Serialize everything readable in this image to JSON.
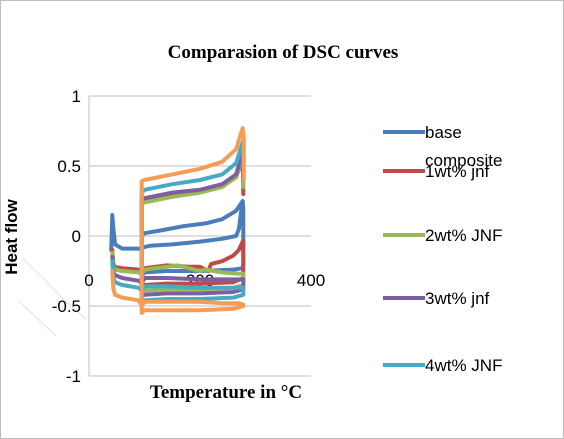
{
  "chart_data": {
    "type": "line",
    "title": "Comparasion of DSC curves",
    "xlabel": "Temperature in °C",
    "ylabel": "Heat flow",
    "xlim": [
      0,
      400
    ],
    "ylim": [
      -1,
      1
    ],
    "x_ticks": [
      "0",
      "200",
      "400"
    ],
    "y_ticks": [
      "1",
      "0.5",
      "0",
      "-0.5",
      "-1"
    ],
    "grid": "horizontal",
    "legend_position": "right",
    "series": [
      {
        "name": "base composite",
        "color": "#4a7ebb",
        "points": [
          [
            40,
            -0.1
          ],
          [
            42,
            0.15
          ],
          [
            44,
            0.05
          ],
          [
            47,
            -0.06
          ],
          [
            60,
            -0.09
          ],
          [
            75,
            -0.09
          ],
          [
            90,
            -0.09
          ],
          [
            95,
            -0.1
          ],
          [
            98,
            -0.08
          ],
          [
            110,
            -0.07
          ],
          [
            150,
            -0.06
          ],
          [
            200,
            -0.04
          ],
          [
            240,
            -0.02
          ],
          [
            265,
            0.0
          ],
          [
            270,
            0.05
          ],
          [
            275,
            0.2
          ],
          [
            277,
            0.25
          ],
          [
            278,
            0.2
          ],
          [
            278,
            0.0
          ],
          [
            278,
            -0.2
          ],
          [
            277,
            -0.23
          ],
          [
            260,
            -0.24
          ],
          [
            200,
            -0.25
          ],
          [
            140,
            -0.25
          ],
          [
            100,
            -0.26
          ],
          [
            98,
            -0.27
          ],
          [
            95,
            -0.26
          ],
          [
            95,
            0.0
          ],
          [
            100,
            0.02
          ],
          [
            130,
            0.04
          ],
          [
            170,
            0.07
          ],
          [
            210,
            0.09
          ],
          [
            240,
            0.12
          ],
          [
            265,
            0.18
          ],
          [
            277,
            0.25
          ]
        ]
      },
      {
        "name": "1wt% jnf",
        "color": "#be4b48",
        "points": [
          [
            42,
            -0.1
          ],
          [
            44,
            -0.2
          ],
          [
            47,
            -0.22
          ],
          [
            60,
            -0.23
          ],
          [
            90,
            -0.24
          ],
          [
            95,
            -0.26
          ],
          [
            100,
            -0.23
          ],
          [
            140,
            -0.21
          ],
          [
            180,
            -0.22
          ],
          [
            200,
            -0.22
          ],
          [
            215,
            -0.25
          ],
          [
            220,
            -0.2
          ],
          [
            240,
            -0.18
          ],
          [
            260,
            -0.14
          ],
          [
            270,
            -0.1
          ],
          [
            278,
            -0.03
          ],
          [
            278,
            -0.3
          ],
          [
            260,
            -0.33
          ],
          [
            200,
            -0.34
          ],
          [
            140,
            -0.34
          ],
          [
            100,
            -0.35
          ],
          [
            95,
            -0.36
          ],
          [
            95,
            0.25
          ],
          [
            100,
            0.26
          ],
          [
            150,
            0.3
          ],
          [
            200,
            0.32
          ],
          [
            240,
            0.36
          ],
          [
            265,
            0.42
          ],
          [
            277,
            0.55
          ],
          [
            278,
            0.3
          ]
        ]
      },
      {
        "name": "2wt% JNF",
        "color": "#98b954",
        "points": [
          [
            42,
            -0.12
          ],
          [
            44,
            -0.22
          ],
          [
            47,
            -0.24
          ],
          [
            60,
            -0.25
          ],
          [
            90,
            -0.26
          ],
          [
            95,
            -0.27
          ],
          [
            100,
            -0.24
          ],
          [
            140,
            -0.22
          ],
          [
            160,
            -0.21
          ],
          [
            180,
            -0.23
          ],
          [
            200,
            -0.25
          ],
          [
            210,
            -0.24
          ],
          [
            240,
            -0.26
          ],
          [
            270,
            -0.27
          ],
          [
            278,
            -0.27
          ],
          [
            278,
            -0.35
          ],
          [
            260,
            -0.37
          ],
          [
            200,
            -0.38
          ],
          [
            140,
            -0.38
          ],
          [
            100,
            -0.39
          ],
          [
            95,
            -0.4
          ],
          [
            95,
            0.23
          ],
          [
            100,
            0.24
          ],
          [
            150,
            0.28
          ],
          [
            200,
            0.31
          ],
          [
            240,
            0.35
          ],
          [
            265,
            0.42
          ],
          [
            277,
            0.58
          ],
          [
            278,
            0.35
          ]
        ]
      },
      {
        "name": "3wt% jnf",
        "color": "#7d5fa0",
        "points": [
          [
            42,
            -0.15
          ],
          [
            44,
            -0.26
          ],
          [
            47,
            -0.28
          ],
          [
            60,
            -0.3
          ],
          [
            90,
            -0.32
          ],
          [
            95,
            -0.34
          ],
          [
            100,
            -0.3
          ],
          [
            140,
            -0.3
          ],
          [
            200,
            -0.31
          ],
          [
            240,
            -0.31
          ],
          [
            270,
            -0.31
          ],
          [
            278,
            -0.31
          ],
          [
            278,
            -0.38
          ],
          [
            260,
            -0.4
          ],
          [
            200,
            -0.41
          ],
          [
            140,
            -0.41
          ],
          [
            100,
            -0.42
          ],
          [
            95,
            -0.43
          ],
          [
            95,
            0.26
          ],
          [
            100,
            0.27
          ],
          [
            150,
            0.31
          ],
          [
            200,
            0.33
          ],
          [
            240,
            0.37
          ],
          [
            265,
            0.44
          ],
          [
            277,
            0.6
          ],
          [
            278,
            0.4
          ]
        ]
      },
      {
        "name": "4wt% JNF",
        "color": "#46aac5",
        "points": [
          [
            42,
            -0.18
          ],
          [
            44,
            -0.3
          ],
          [
            47,
            -0.33
          ],
          [
            60,
            -0.35
          ],
          [
            90,
            -0.37
          ],
          [
            95,
            -0.39
          ],
          [
            100,
            -0.36
          ],
          [
            140,
            -0.36
          ],
          [
            200,
            -0.37
          ],
          [
            240,
            -0.37
          ],
          [
            270,
            -0.37
          ],
          [
            278,
            -0.37
          ],
          [
            278,
            -0.42
          ],
          [
            260,
            -0.44
          ],
          [
            200,
            -0.45
          ],
          [
            140,
            -0.45
          ],
          [
            100,
            -0.46
          ],
          [
            95,
            -0.47
          ],
          [
            95,
            0.31
          ],
          [
            100,
            0.33
          ],
          [
            150,
            0.37
          ],
          [
            200,
            0.4
          ],
          [
            240,
            0.44
          ],
          [
            265,
            0.52
          ],
          [
            277,
            0.67
          ],
          [
            278,
            0.5
          ]
        ]
      },
      {
        "name": "",
        "color": "#f59d56",
        "points": [
          [
            42,
            -0.25
          ],
          [
            44,
            -0.38
          ],
          [
            47,
            -0.42
          ],
          [
            60,
            -0.44
          ],
          [
            90,
            -0.46
          ],
          [
            95,
            -0.5
          ],
          [
            100,
            -0.47
          ],
          [
            140,
            -0.47
          ],
          [
            200,
            -0.47
          ],
          [
            240,
            -0.48
          ],
          [
            270,
            -0.48
          ],
          [
            278,
            -0.49
          ],
          [
            278,
            -0.5
          ],
          [
            260,
            -0.52
          ],
          [
            200,
            -0.53
          ],
          [
            140,
            -0.53
          ],
          [
            100,
            -0.53
          ],
          [
            95,
            -0.55
          ],
          [
            95,
            0.39
          ],
          [
            100,
            0.4
          ],
          [
            150,
            0.44
          ],
          [
            200,
            0.48
          ],
          [
            240,
            0.53
          ],
          [
            265,
            0.62
          ],
          [
            277,
            0.77
          ],
          [
            279,
            0.7
          ],
          [
            279,
            0.4
          ]
        ]
      }
    ],
    "legend": [
      {
        "label_lines": [
          "base",
          "composite"
        ],
        "color": "#4a7ebb"
      },
      {
        "label_lines": [
          "1wt% jnf"
        ],
        "color": "#be4b48"
      },
      {
        "label_lines": [
          "2wt% JNF"
        ],
        "color": "#98b954"
      },
      {
        "label_lines": [
          "3wt% jnf"
        ],
        "color": "#7d5fa0"
      },
      {
        "label_lines": [
          "4wt% JNF"
        ],
        "color": "#46aac5"
      }
    ]
  }
}
